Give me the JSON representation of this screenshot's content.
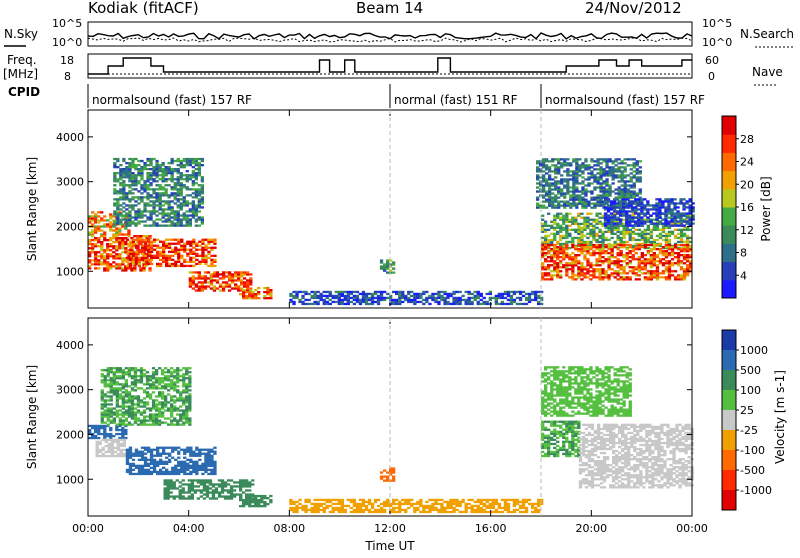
{
  "header": {
    "station": "Kodiak (fitACF)",
    "beam": "Beam 14",
    "date": "24/Nov/2012"
  },
  "panels": {
    "nsky": {
      "left_label": "N.Sky",
      "right_label": "N.Search",
      "left_ticks": [
        "10^5",
        "10^0"
      ],
      "right_ticks": [
        "10^5",
        "10^0"
      ]
    },
    "freq": {
      "left_label_1": "Freq.",
      "left_label_2": "[MHz]",
      "right_label": "Nave",
      "left_ticks": [
        "18",
        "8"
      ],
      "right_ticks": [
        "60",
        "0"
      ]
    },
    "cpid": {
      "label": "CPID",
      "segments": [
        {
          "label": "normalsound (fast) 157 RF",
          "start_h": 0,
          "end_h": 12
        },
        {
          "label": "normal (fast) 151 RF",
          "start_h": 12,
          "end_h": 18
        },
        {
          "label": "normalsound (fast) 157 RF",
          "start_h": 18,
          "end_h": 24
        }
      ]
    }
  },
  "chart_data": [
    {
      "type": "heatmap",
      "name": "power",
      "ylabel": "Slant Range [km]",
      "xlabel": "Time UT",
      "xlim": [
        0,
        24
      ],
      "ylim": [
        180,
        4600
      ],
      "yticks": [
        1000,
        2000,
        3000,
        4000
      ],
      "xticks": [
        "00:00",
        "04:00",
        "08:00",
        "12:00",
        "16:00",
        "20:00",
        "00:00"
      ],
      "colorbar": {
        "label": "Power [dB]",
        "ticks": [
          "4",
          "8",
          "12",
          "16",
          "20",
          "24",
          "28"
        ],
        "tick_values": [
          4,
          8,
          12,
          16,
          20,
          24,
          28
        ],
        "range": [
          0,
          32
        ],
        "colors": [
          "#1a1aff",
          "#2540b8",
          "#2e6f8a",
          "#3a8a5a",
          "#44aa44",
          "#b8c81e",
          "#f0a000",
          "#ff6a00",
          "#ff2a00",
          "#e00000"
        ]
      },
      "regions": [
        {
          "t": [
            0.0,
            1.6
          ],
          "r": [
            1800,
            2300
          ],
          "v": 22
        },
        {
          "t": [
            0.0,
            2.5
          ],
          "r": [
            1000,
            1800
          ],
          "v": 26
        },
        {
          "t": [
            1.5,
            5.0
          ],
          "r": [
            1100,
            1700
          ],
          "v": 28
        },
        {
          "t": [
            4.0,
            6.5
          ],
          "r": [
            550,
            1000
          ],
          "v": 27
        },
        {
          "t": [
            6.0,
            7.3
          ],
          "r": [
            380,
            650
          ],
          "v": 24
        },
        {
          "t": [
            1.0,
            4.5
          ],
          "r": [
            2000,
            3500
          ],
          "v": 10
        },
        {
          "t": [
            11.6,
            12.1
          ],
          "r": [
            950,
            1250
          ],
          "v": 12
        },
        {
          "t": [
            8.0,
            18.0
          ],
          "r": [
            250,
            550
          ],
          "v": 6
        },
        {
          "t": [
            18.0,
            24.0
          ],
          "r": [
            1500,
            2300
          ],
          "v": 14
        },
        {
          "t": [
            18.0,
            24.0
          ],
          "r": [
            800,
            1600
          ],
          "v": 26
        },
        {
          "t": [
            17.8,
            22.0
          ],
          "r": [
            2400,
            3500
          ],
          "v": 9
        },
        {
          "t": [
            20.5,
            24.0
          ],
          "r": [
            2000,
            2600
          ],
          "v": 5
        }
      ]
    },
    {
      "type": "heatmap",
      "name": "velocity",
      "ylabel": "Slant Range [km]",
      "xlabel": "Time UT",
      "xlim": [
        0,
        24
      ],
      "ylim": [
        180,
        4600
      ],
      "yticks": [
        1000,
        2000,
        3000,
        4000
      ],
      "xticks": [
        "00:00",
        "04:00",
        "08:00",
        "12:00",
        "16:00",
        "20:00",
        "00:00"
      ],
      "colorbar": {
        "label": "Velocity [m s-1]",
        "ticks": [
          "1000",
          "500",
          "100",
          "25",
          "-25",
          "-100",
          "-500",
          "-1000"
        ],
        "tick_values": [
          1000,
          500,
          100,
          25,
          -25,
          -100,
          -500,
          -1000
        ],
        "colors": [
          "#1a3aa8",
          "#2a6ab0",
          "#3a8a5a",
          "#55c040",
          "#c8c8c8",
          "#f0a000",
          "#ff6a00",
          "#ff2a00",
          "#e00000"
        ]
      },
      "regions": [
        {
          "t": [
            0.0,
            1.5
          ],
          "r": [
            1900,
            2200
          ],
          "v": 700
        },
        {
          "t": [
            0.3,
            1.5
          ],
          "r": [
            1500,
            1900
          ],
          "v": 0
        },
        {
          "t": [
            1.5,
            5.0
          ],
          "r": [
            1100,
            1700
          ],
          "v": 700
        },
        {
          "t": [
            3.0,
            6.5
          ],
          "r": [
            550,
            1000
          ],
          "v": 200
        },
        {
          "t": [
            0.5,
            4.0
          ],
          "r": [
            2200,
            3500
          ],
          "v": 100
        },
        {
          "t": [
            6.0,
            7.3
          ],
          "r": [
            380,
            650
          ],
          "v": 150
        },
        {
          "t": [
            11.6,
            12.1
          ],
          "r": [
            950,
            1250
          ],
          "v": -300
        },
        {
          "t": [
            8.0,
            18.0
          ],
          "r": [
            250,
            550
          ],
          "v": -50
        },
        {
          "t": [
            18.0,
            19.5
          ],
          "r": [
            1500,
            2300
          ],
          "v": 100
        },
        {
          "t": [
            19.5,
            24.0
          ],
          "r": [
            800,
            2200
          ],
          "v": 0
        },
        {
          "t": [
            18.0,
            21.5
          ],
          "r": [
            2400,
            3500
          ],
          "v": 60
        }
      ]
    }
  ]
}
